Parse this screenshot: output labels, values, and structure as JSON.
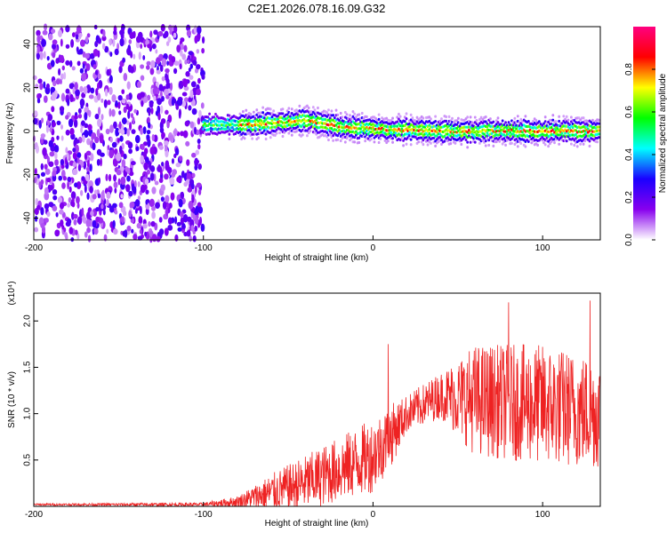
{
  "title": "C2E1.2026.078.16.09.G32",
  "chart_data": [
    {
      "type": "heatmap",
      "xlabel": "Height of straight line (km)",
      "ylabel": "Frequency (Hz)",
      "xlim": [
        -200,
        134
      ],
      "ylim": [
        -50,
        48
      ],
      "xticks": [
        -200,
        -100,
        0,
        100
      ],
      "yticks": [
        -40,
        -20,
        0,
        20,
        40
      ],
      "colorbar": {
        "label": "Normalized spectral amplitude",
        "range": [
          0,
          1
        ],
        "ticks": [
          "0.0",
          "0.2",
          "0.4",
          "0.6",
          "0.8"
        ],
        "colors": [
          "#ffffff",
          "#8800ee",
          "#1a00ff",
          "#00ffff",
          "#00ff00",
          "#ffff00",
          "#ff0000",
          "#ff0080"
        ]
      },
      "regions": [
        {
          "name": "noise",
          "x_range": [
            -200,
            -100
          ],
          "freq_range": [
            -50,
            48
          ],
          "amplitude": [
            0.0,
            0.25
          ]
        },
        {
          "name": "signal-trace",
          "x_range": [
            -100,
            134
          ],
          "center_freq_hz": 0,
          "peak_amplitude": 0.9
        }
      ],
      "trace_center_hz": [
        {
          "x": -105,
          "f": 3
        },
        {
          "x": -70,
          "f": 3
        },
        {
          "x": -40,
          "f": 5
        },
        {
          "x": -20,
          "f": 2
        },
        {
          "x": 0,
          "f": 1
        },
        {
          "x": 40,
          "f": 0
        },
        {
          "x": 100,
          "f": 0
        },
        {
          "x": 134,
          "f": 0
        }
      ]
    },
    {
      "type": "line",
      "xlabel": "Height of straight line (km)",
      "ylabel": "SNR (10 * v/v)",
      "yscale_label": "(x10⁴)",
      "xlim": [
        -200,
        134
      ],
      "ylim": [
        0,
        2.3
      ],
      "xticks": [
        -200,
        -100,
        0,
        100
      ],
      "yticks": [
        "0.5",
        "1.0",
        "1.5",
        "2.0"
      ],
      "line_color": "#ee2222",
      "envelope_points": [
        {
          "x": -200,
          "mean": 0.02,
          "spread": 0.01
        },
        {
          "x": -100,
          "mean": 0.02,
          "spread": 0.02
        },
        {
          "x": -80,
          "mean": 0.05,
          "spread": 0.06
        },
        {
          "x": -60,
          "mean": 0.15,
          "spread": 0.2
        },
        {
          "x": -40,
          "mean": 0.25,
          "spread": 0.3
        },
        {
          "x": -20,
          "mean": 0.4,
          "spread": 0.35
        },
        {
          "x": 0,
          "mean": 0.55,
          "spread": 0.4
        },
        {
          "x": 10,
          "mean": 0.75,
          "spread": 0.35
        },
        {
          "x": 20,
          "mean": 1.0,
          "spread": 0.2
        },
        {
          "x": 40,
          "mean": 1.2,
          "spread": 0.25
        },
        {
          "x": 60,
          "mean": 1.15,
          "spread": 0.6
        },
        {
          "x": 100,
          "mean": 1.1,
          "spread": 0.65
        },
        {
          "x": 134,
          "mean": 1.0,
          "spread": 0.6
        }
      ],
      "peaks": [
        {
          "x": 9,
          "y": 1.75
        },
        {
          "x": 80,
          "y": 2.2
        },
        {
          "x": 128,
          "y": 2.22
        }
      ]
    }
  ]
}
